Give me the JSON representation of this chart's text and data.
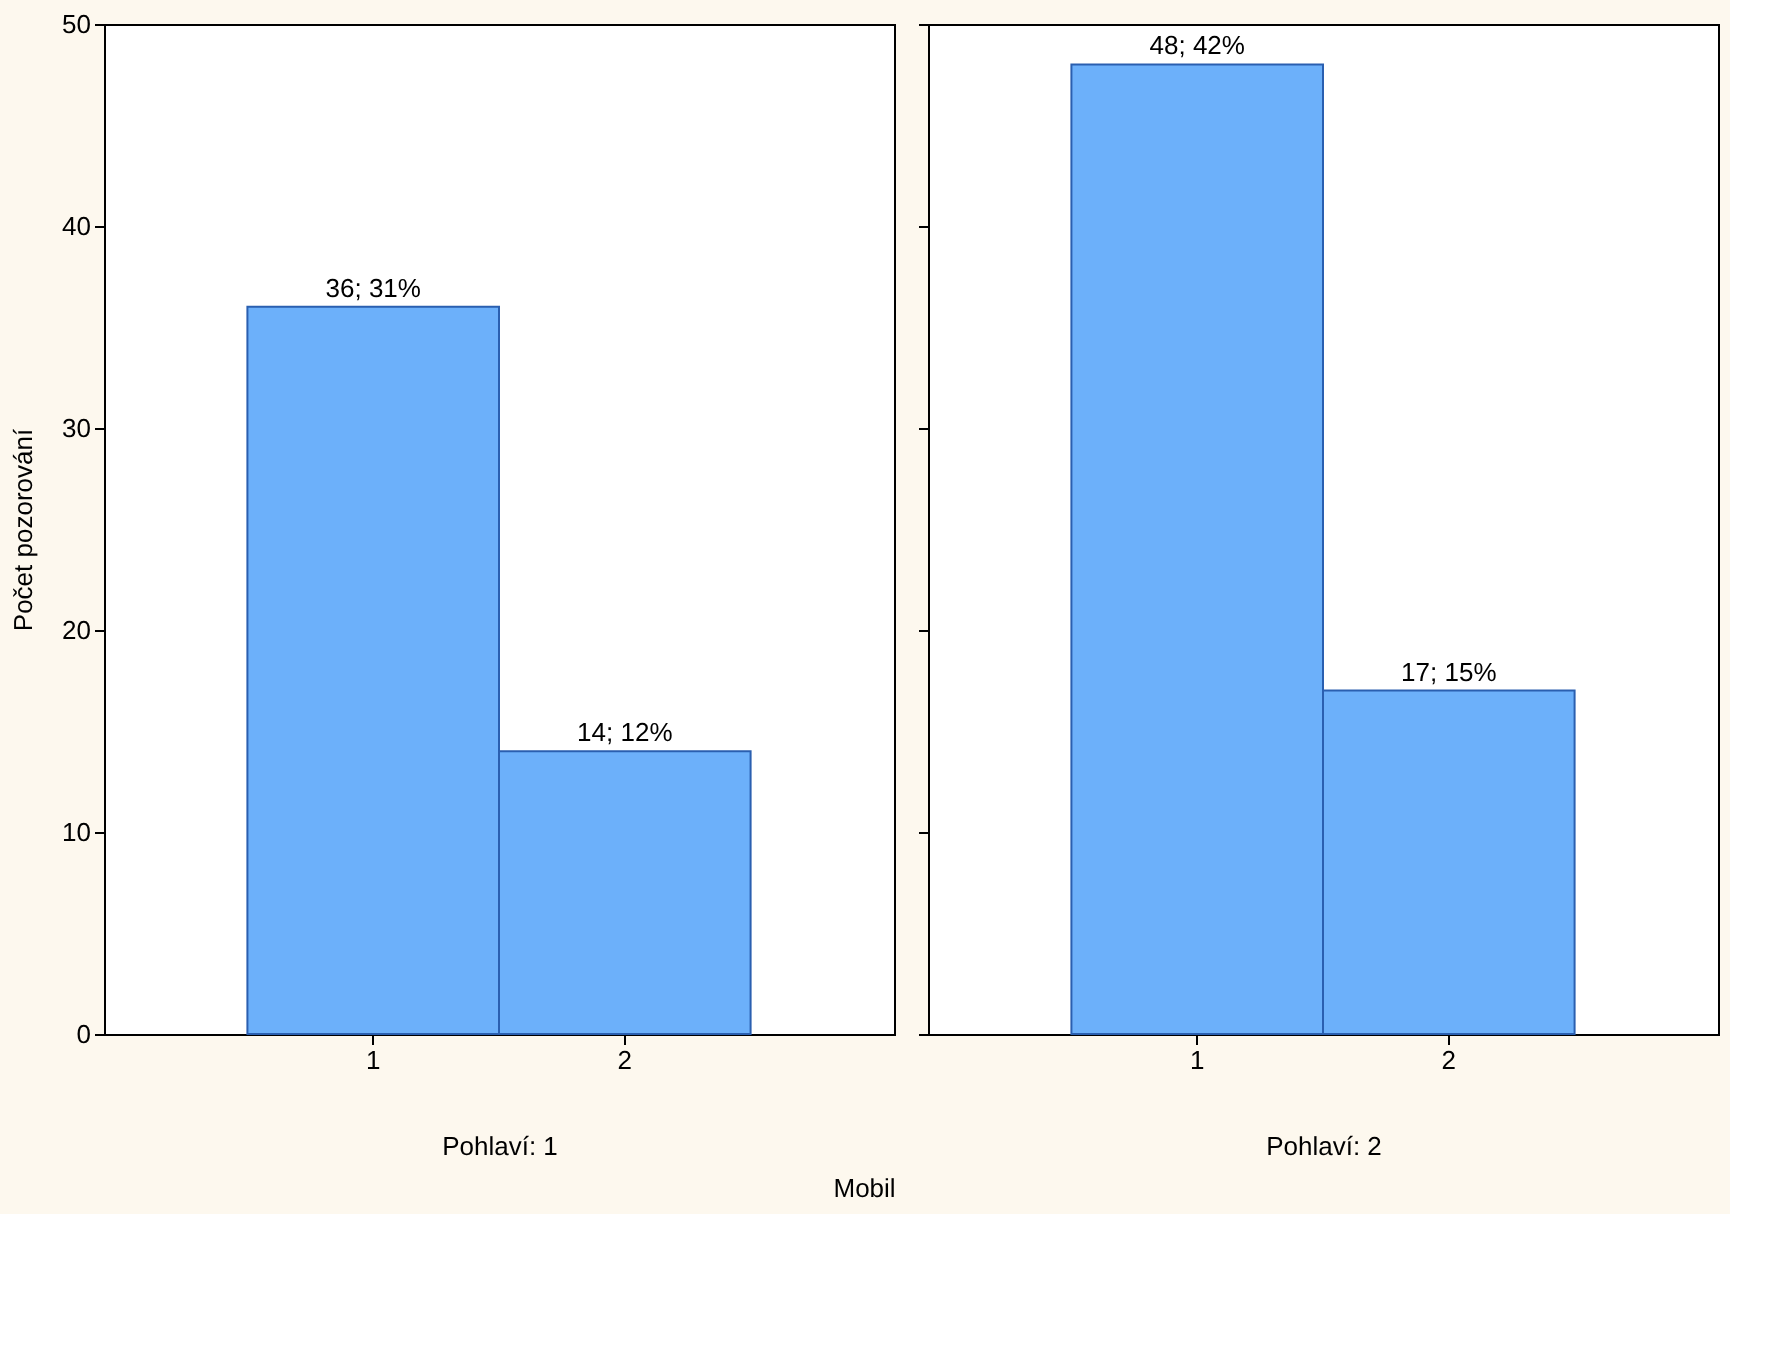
{
  "chart_data": [
    {
      "type": "bar",
      "categories": [
        "1",
        "2"
      ],
      "values": [
        36,
        14
      ],
      "value_labels": [
        "36; 31%",
        "14; 12%"
      ],
      "color": "#6cb0fa",
      "xlabel": "Pohlaví: 1",
      "ylabel": "Počet pozorování",
      "ylim": [
        0,
        50
      ],
      "yticks": [
        0,
        10,
        20,
        30,
        40,
        50
      ],
      "grid": false,
      "annotations": [
        "Mobil"
      ]
    },
    {
      "type": "bar",
      "categories": [
        "1",
        "2"
      ],
      "values": [
        48,
        17
      ],
      "value_labels": [
        "48; 42%",
        "17; 15%"
      ],
      "color": "#6cb0fa",
      "xlabel": "Pohlaví: 2",
      "ylim": [
        0,
        50
      ],
      "yticks": [
        0,
        10,
        20,
        30,
        40,
        50
      ],
      "grid": false,
      "tick_labels": "x"
    }
  ]
}
